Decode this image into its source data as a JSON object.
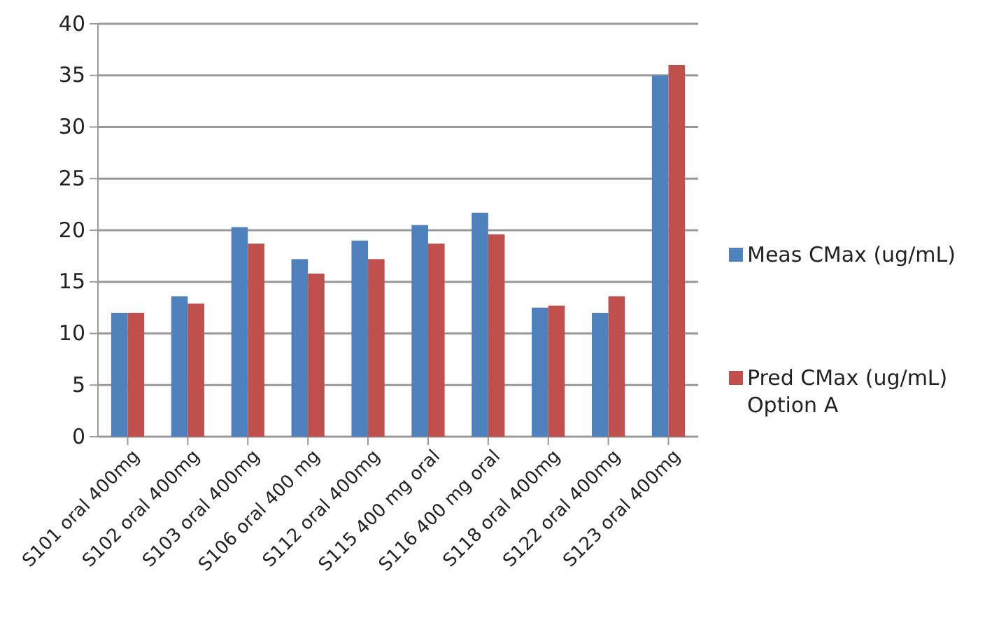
{
  "chart_data": {
    "type": "bar",
    "categories": [
      "S101 oral 400mg",
      "S102 oral 400mg",
      "S103 oral 400mg",
      "S106 oral 400 mg",
      "S112 oral 400mg",
      "S115 400 mg oral",
      "S116 400 mg oral",
      "S118 oral 400mg",
      "S122 oral 400mg",
      "S123 oral 400mg"
    ],
    "series": [
      {
        "name": "Meas CMax (ug/mL)",
        "color": "#4f81bd",
        "values": [
          12,
          13.6,
          20.3,
          17.2,
          19,
          20.5,
          21.7,
          12.5,
          12,
          35
        ]
      },
      {
        "name": "Pred CMax (ug/mL) Option A",
        "color": "#c0504d",
        "values": [
          12,
          12.9,
          18.7,
          15.8,
          17.2,
          18.7,
          19.6,
          12.7,
          13.6,
          36
        ]
      }
    ],
    "ylim": [
      0,
      40
    ],
    "yticks": [
      0,
      5,
      10,
      15,
      20,
      25,
      30,
      35,
      40
    ],
    "grid": "y",
    "legend": "right"
  }
}
